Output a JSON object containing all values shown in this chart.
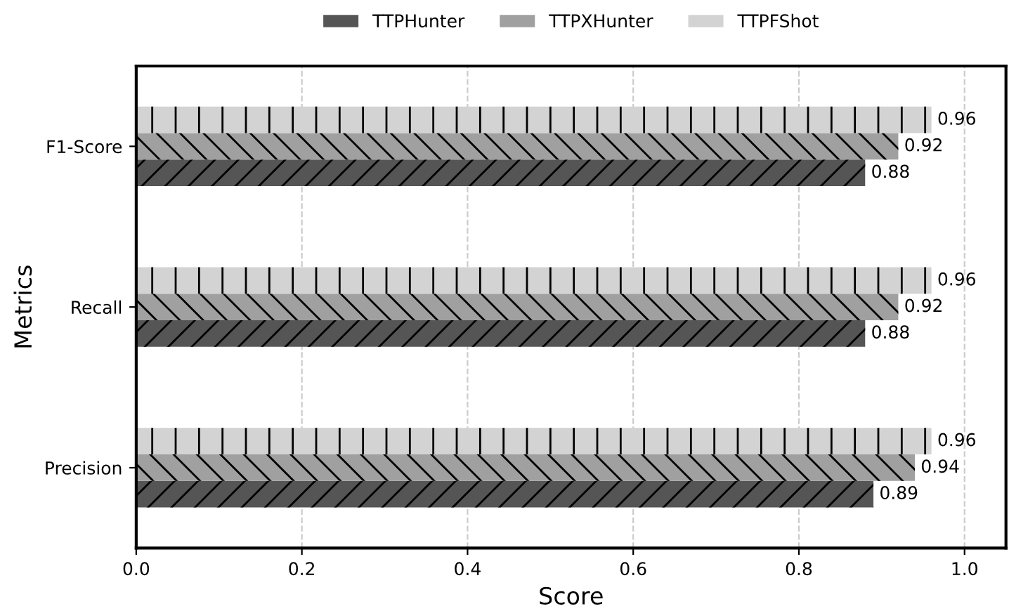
{
  "chart_data": {
    "type": "bar",
    "orientation": "horizontal",
    "xlabel": "Score",
    "ylabel": "Metrics",
    "categories": [
      "F1-Score",
      "Recall",
      "Precision"
    ],
    "series": [
      {
        "name": "TTPHunter",
        "color": "#555555",
        "values": [
          0.88,
          0.88,
          0.89
        ]
      },
      {
        "name": "TTPXHunter",
        "color": "#a0a0a0",
        "values": [
          0.92,
          0.92,
          0.94
        ]
      },
      {
        "name": "TTPFShot",
        "color": "#d3d3d3",
        "values": [
          0.96,
          0.96,
          0.96
        ]
      }
    ],
    "xlim": [
      0,
      1.05
    ],
    "xticks": [
      {
        "value": 0,
        "label": "0.0"
      },
      {
        "value": 0.2,
        "label": "0.2"
      },
      {
        "value": 0.4,
        "label": "0.4"
      },
      {
        "value": 0.6,
        "label": "0.6"
      },
      {
        "value": 0.8,
        "label": "0.8"
      },
      {
        "value": 1.0,
        "label": "1.0"
      }
    ],
    "grid": "x",
    "legend": "top",
    "data_labels": true
  }
}
